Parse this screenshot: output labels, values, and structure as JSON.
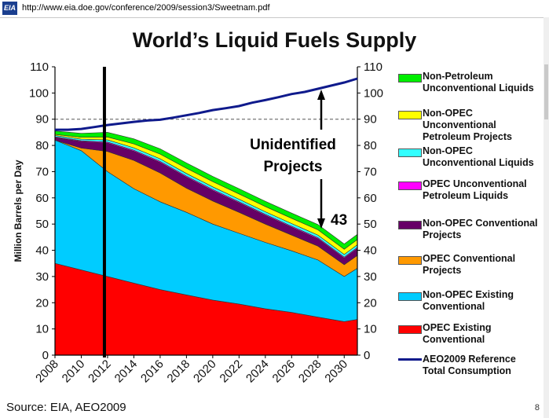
{
  "browser": {
    "logo_text": "EIA",
    "url": "http://www.eia.doe.gov/conference/2009/session3/Sweetnam.pdf"
  },
  "slide": {
    "title": "World’s Liquid Fuels Supply",
    "source": "Source: EIA, AEO2009",
    "page_number": "8"
  },
  "chart_data": {
    "type": "area",
    "title": "World’s Liquid Fuels Supply",
    "ylabel": "Million Barrels per Day",
    "xlabel": "",
    "x": [
      2008,
      2010,
      2012,
      2014,
      2016,
      2018,
      2020,
      2022,
      2024,
      2026,
      2028,
      2030
    ],
    "xlim": [
      2008,
      2031
    ],
    "ylim": [
      0,
      110
    ],
    "x_ticks": [
      "2008",
      "2010",
      "2012",
      "2014",
      "2016",
      "2018",
      "2020",
      "2022",
      "2024",
      "2026",
      "2028",
      "2030"
    ],
    "y_ticks": [
      "0",
      "10",
      "20",
      "30",
      "40",
      "50",
      "60",
      "70",
      "80",
      "90",
      "100",
      "110"
    ],
    "grid": "horizontal dashed at 90",
    "stacked": true,
    "series": [
      {
        "name": "OPEC Existing Conventional",
        "color": "#ff0000",
        "values": [
          35,
          32.5,
          30,
          27.5,
          25,
          23,
          21,
          19.5,
          17.7,
          16.3,
          14.5,
          12.8
        ]
      },
      {
        "name": "Non-OPEC Existing Conventional",
        "color": "#00ccff",
        "values": [
          47,
          45.5,
          40,
          36,
          33.5,
          31.5,
          29,
          27,
          25.3,
          23.5,
          21.8,
          17.2
        ]
      },
      {
        "name": "OPEC Conventional Projects",
        "color": "#ff9900",
        "values": [
          0,
          1,
          7.7,
          10.8,
          11,
          9.2,
          8.8,
          8,
          7,
          6,
          5.3,
          4.5
        ]
      },
      {
        "name": "Non-OPEC Conventional Projects",
        "color": "#660066",
        "values": [
          1,
          2.5,
          3.2,
          3.5,
          4,
          4.2,
          4,
          3.6,
          3.3,
          3,
          2.8,
          2.5
        ]
      },
      {
        "name": "OPEC Unconventional Petroleum Liquids",
        "color": "#ff00ff",
        "values": [
          0.3,
          0.3,
          0.4,
          0.4,
          0.4,
          0.4,
          0.4,
          0.4,
          0.4,
          0.4,
          0.4,
          0.4
        ]
      },
      {
        "name": "Non-OPEC Unconventional Liquids",
        "color": "#33ffff",
        "values": [
          0.5,
          0.6,
          0.8,
          0.9,
          1,
          1,
          1,
          1,
          1,
          1,
          1,
          1
        ]
      },
      {
        "name": "Non-OPEC Unconventional Petroleum Projects",
        "color": "#ffff00",
        "values": [
          0.4,
          0.7,
          1.1,
          1.5,
          1.8,
          2,
          2,
          2,
          2,
          2,
          2,
          2
        ]
      },
      {
        "name": "Non-Petroleum Unconventional Liquids",
        "color": "#00ee00",
        "values": [
          1.3,
          1.5,
          1.8,
          1.9,
          2,
          2,
          2,
          2,
          2,
          2,
          2,
          2
        ]
      }
    ],
    "line_series": {
      "name": "AEO2009 Reference Total Consumption",
      "color": "#0f1a8c",
      "x": [
        2008,
        2009,
        2010,
        2011,
        2012,
        2013,
        2014,
        2015,
        2016,
        2017,
        2018,
        2019,
        2020,
        2021,
        2022,
        2023,
        2024,
        2025,
        2026,
        2027,
        2028,
        2029,
        2030,
        2031
      ],
      "values": [
        86,
        86,
        86.3,
        87,
        87.8,
        88.4,
        89,
        89.5,
        89.8,
        90.6,
        91.5,
        92.4,
        93.5,
        94.2,
        95,
        96.3,
        97.3,
        98.4,
        99.6,
        100.4,
        101.6,
        102.8,
        104,
        105.5
      ]
    },
    "marker_year": 2012,
    "annotations": {
      "projects_label": "Unidentified Projects",
      "gap_value": "43"
    },
    "legend_position": "right"
  }
}
